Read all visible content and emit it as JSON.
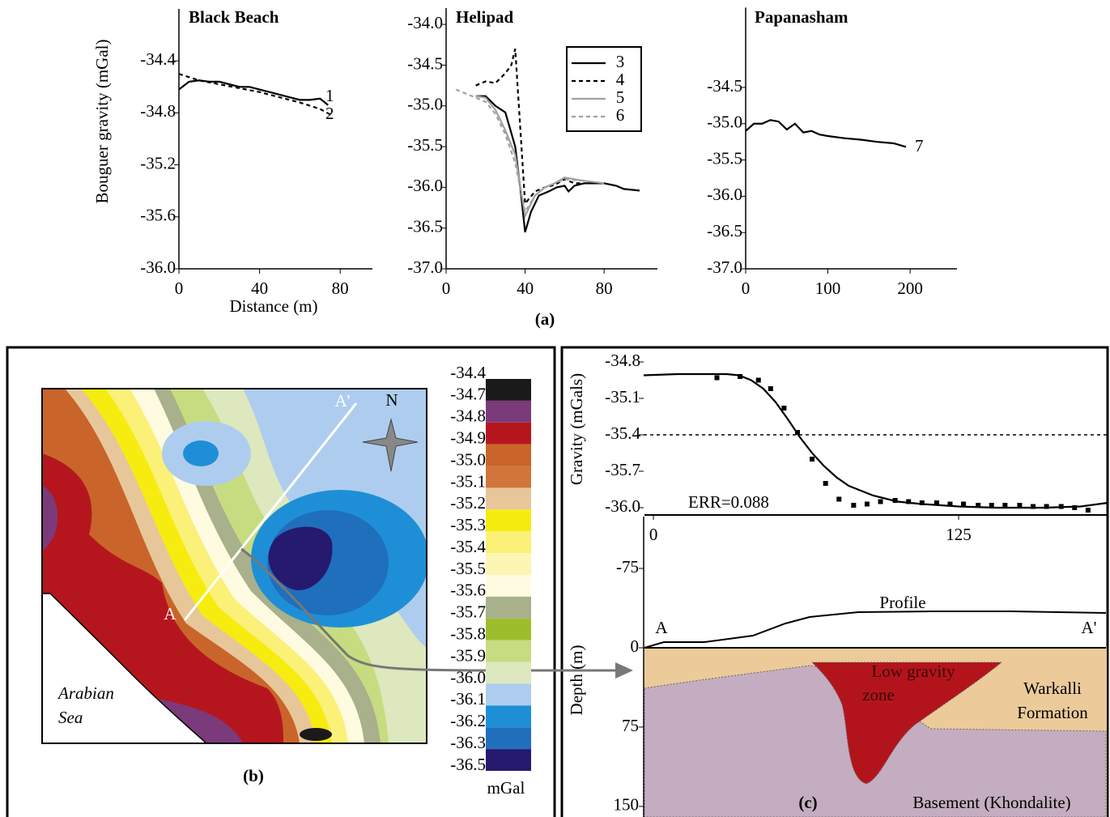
{
  "chart_data": [
    {
      "type": "line",
      "title": "Black Beach",
      "xlabel": "Distance (m)",
      "ylabel": "Bouguer gravity (mGal)",
      "xlim": [
        0,
        96
      ],
      "xticks": [
        0,
        40,
        80
      ],
      "ylim": [
        -36.0,
        -34.0
      ],
      "yticks": [
        -34.4,
        -34.8,
        -35.2,
        -35.6,
        {
          "value": -36,
          "label": "-36.0"
        }
      ],
      "series": [
        {
          "name": "1",
          "color": "#000000",
          "dash": false,
          "x": [
            0,
            5,
            10,
            15,
            20,
            25,
            30,
            35,
            40,
            45,
            50,
            55,
            60,
            65,
            70,
            74
          ],
          "values": [
            -34.62,
            -34.56,
            -34.55,
            -34.56,
            -34.56,
            -34.58,
            -34.6,
            -34.6,
            -34.62,
            -34.64,
            -34.66,
            -34.68,
            -34.7,
            -34.7,
            -34.69,
            -34.74
          ]
        },
        {
          "name": "2",
          "color": "#000000",
          "dash": true,
          "x": [
            0,
            10,
            20,
            30,
            40,
            50,
            60,
            70,
            76
          ],
          "values": [
            -34.5,
            -34.55,
            -34.58,
            -34.61,
            -34.64,
            -34.68,
            -34.72,
            -34.77,
            -34.82
          ]
        }
      ]
    },
    {
      "type": "line",
      "title": "Helipad",
      "xlim": [
        0,
        107
      ],
      "xticks": [
        0,
        40,
        80
      ],
      "ylim": [
        -37.0,
        -33.8
      ],
      "yticks": [
        {
          "value": -34,
          "label": "-34.0"
        },
        -34.5,
        {
          "value": -35,
          "label": "-35.0"
        },
        -35.5,
        {
          "value": -36,
          "label": "-36.0"
        },
        -36.5,
        {
          "value": -37,
          "label": "-37.0"
        }
      ],
      "legend": "upper right",
      "series": [
        {
          "name": "3",
          "color": "#000000",
          "dash": false,
          "x": [
            15,
            20,
            25,
            30,
            35,
            38,
            40,
            43,
            47,
            52,
            56,
            60,
            62,
            65,
            70,
            80,
            86,
            90,
            98
          ],
          "values": [
            -34.88,
            -34.88,
            -35.0,
            -35.08,
            -35.5,
            -36.1,
            -36.55,
            -36.3,
            -36.1,
            -36.05,
            -36.0,
            -35.98,
            -36.05,
            -35.98,
            -35.95,
            -35.95,
            -35.98,
            -36.02,
            -36.04
          ]
        },
        {
          "name": "4",
          "color": "#000000",
          "dash": true,
          "x": [
            15,
            20,
            25,
            30,
            33,
            35,
            40,
            45,
            50,
            55,
            60,
            65,
            70
          ],
          "values": [
            -34.75,
            -34.7,
            -34.72,
            -34.6,
            -34.5,
            -34.3,
            -36.2,
            -36.05,
            -36.0,
            -35.97,
            -35.9,
            -35.95,
            -35.95
          ]
        },
        {
          "name": "5",
          "color": "#a0a0a0",
          "dash": false,
          "x": [
            15,
            20,
            25,
            30,
            35,
            40,
            45,
            50,
            55,
            60,
            65,
            70,
            80
          ],
          "values": [
            -34.88,
            -34.9,
            -35.05,
            -35.3,
            -35.6,
            -36.35,
            -36.1,
            -36.0,
            -35.95,
            -35.88,
            -35.9,
            -35.92,
            -35.95
          ]
        },
        {
          "name": "6",
          "color": "#a0a0a0",
          "dash": true,
          "x": [
            5,
            10,
            15,
            20,
            25,
            30,
            35,
            40,
            45,
            50,
            55,
            60,
            70
          ],
          "values": [
            -34.8,
            -34.85,
            -34.9,
            -34.95,
            -35.1,
            -35.35,
            -35.7,
            -36.3,
            -36.1,
            -36.0,
            -35.95,
            -35.9,
            -35.92
          ]
        }
      ]
    },
    {
      "type": "line",
      "title": "Papanasham",
      "xlim": [
        0,
        257
      ],
      "xticks": [
        0,
        100,
        200
      ],
      "ylim": [
        -37.0,
        -33.4
      ],
      "yticks": [
        -34.5,
        {
          "value": -35,
          "label": "-35.0"
        },
        -35.5,
        {
          "value": -36,
          "label": "-36.0"
        },
        -36.5,
        {
          "value": -37,
          "label": "-37.0"
        }
      ],
      "series": [
        {
          "name": "7",
          "color": "#000000",
          "dash": false,
          "x": [
            0,
            10,
            20,
            30,
            40,
            50,
            60,
            70,
            80,
            90,
            100,
            120,
            140,
            160,
            180,
            195
          ],
          "values": [
            -35.1,
            -35.0,
            -35.0,
            -34.95,
            -34.97,
            -35.08,
            -35.0,
            -35.12,
            -35.1,
            -35.15,
            -35.17,
            -35.2,
            -35.22,
            -35.25,
            -35.27,
            -35.32
          ]
        }
      ]
    },
    {
      "type": "line",
      "ylabel": "Gravity (mGals)",
      "annotation": "ERR=0.088",
      "xlim": [
        -4,
        186
      ],
      "xticks": [
        0,
        125
      ],
      "ylim": [
        -36.06,
        -34.7
      ],
      "yticks": [
        -34.8,
        -35.1,
        -35.4,
        -35.7,
        {
          "value": -36,
          "label": "-36.0"
        }
      ],
      "reference_line": -35.4,
      "series": [
        {
          "color": "#000000",
          "dash": false,
          "x": [
            -4,
            10,
            20,
            30,
            35,
            40,
            45,
            50,
            55,
            60,
            65,
            70,
            75,
            80,
            90,
            100,
            110,
            125,
            140,
            160,
            175,
            186
          ],
          "values": [
            -34.91,
            -34.9,
            -34.9,
            -34.9,
            -34.91,
            -34.95,
            -35.02,
            -35.13,
            -35.27,
            -35.42,
            -35.55,
            -35.66,
            -35.75,
            -35.82,
            -35.9,
            -35.95,
            -35.97,
            -35.99,
            -36.0,
            -36.0,
            -35.99,
            -35.96
          ]
        },
        {
          "color": "#000000",
          "marker": "square",
          "x": [
            26,
            35.5,
            43,
            48,
            53.5,
            59,
            65,
            70.5,
            76,
            82,
            87.5,
            93,
            99,
            104.5,
            110,
            116,
            121.5,
            127,
            133,
            138.5,
            144,
            150,
            155.5,
            161,
            167,
            172.5,
            178
          ],
          "values": [
            -34.93,
            -34.92,
            -34.95,
            -35.02,
            -35.18,
            -35.38,
            -35.6,
            -35.8,
            -35.93,
            -35.98,
            -35.97,
            -35.95,
            -35.94,
            -35.95,
            -35.96,
            -35.96,
            -35.97,
            -35.97,
            -35.98,
            -35.98,
            -35.98,
            -35.98,
            -35.99,
            -35.99,
            -35.99,
            -36.0,
            -36.02
          ]
        }
      ]
    },
    {
      "type": "section",
      "ylabel": "Depth (m)",
      "ylim": [
        -124,
        160
      ],
      "y_inverted": true,
      "yticks": [
        -75,
        0,
        75,
        150
      ],
      "labels": {
        "start": "A",
        "end": "A'",
        "profile": "Profile",
        "zone": [
          "Low gravity",
          "zone"
        ],
        "formation": [
          "Warkalli",
          "Formation"
        ],
        "basement": "Basement (Khondalite)"
      }
    }
  ],
  "map": {
    "labels": {
      "sea": [
        "Arabian",
        "Sea"
      ],
      "a": "A",
      "a_prime": "A'",
      "north": "N"
    },
    "colorbar": {
      "labels": [
        "-34.4",
        "-34.7",
        "-34.8",
        "-34.9",
        "-35.0",
        "-35.1",
        "-35.2",
        "-35.3",
        "-35.4",
        "-35.5",
        "-35.6",
        "-35.7",
        "-35.8",
        "-35.9",
        "-36.0",
        "-36.1",
        "-36.2",
        "-36.3",
        "-36.5"
      ],
      "colors": [
        "#1a1a1a",
        "#7b3a7a",
        "#b5161e",
        "#c9652a",
        "#d0763a",
        "#e7c79a",
        "#f6ec10",
        "#fbf078",
        "#fdf6b2",
        "#fefbe0",
        "#a8b08c",
        "#9ebd2c",
        "#c7dc80",
        "#dde8bf",
        "#aecdee",
        "#1e8fd6",
        "#1f6fbd",
        "#251a6e"
      ],
      "unit": "mGal"
    }
  },
  "captions": {
    "a": "(a)",
    "b": "(b)",
    "c": "(c)"
  }
}
